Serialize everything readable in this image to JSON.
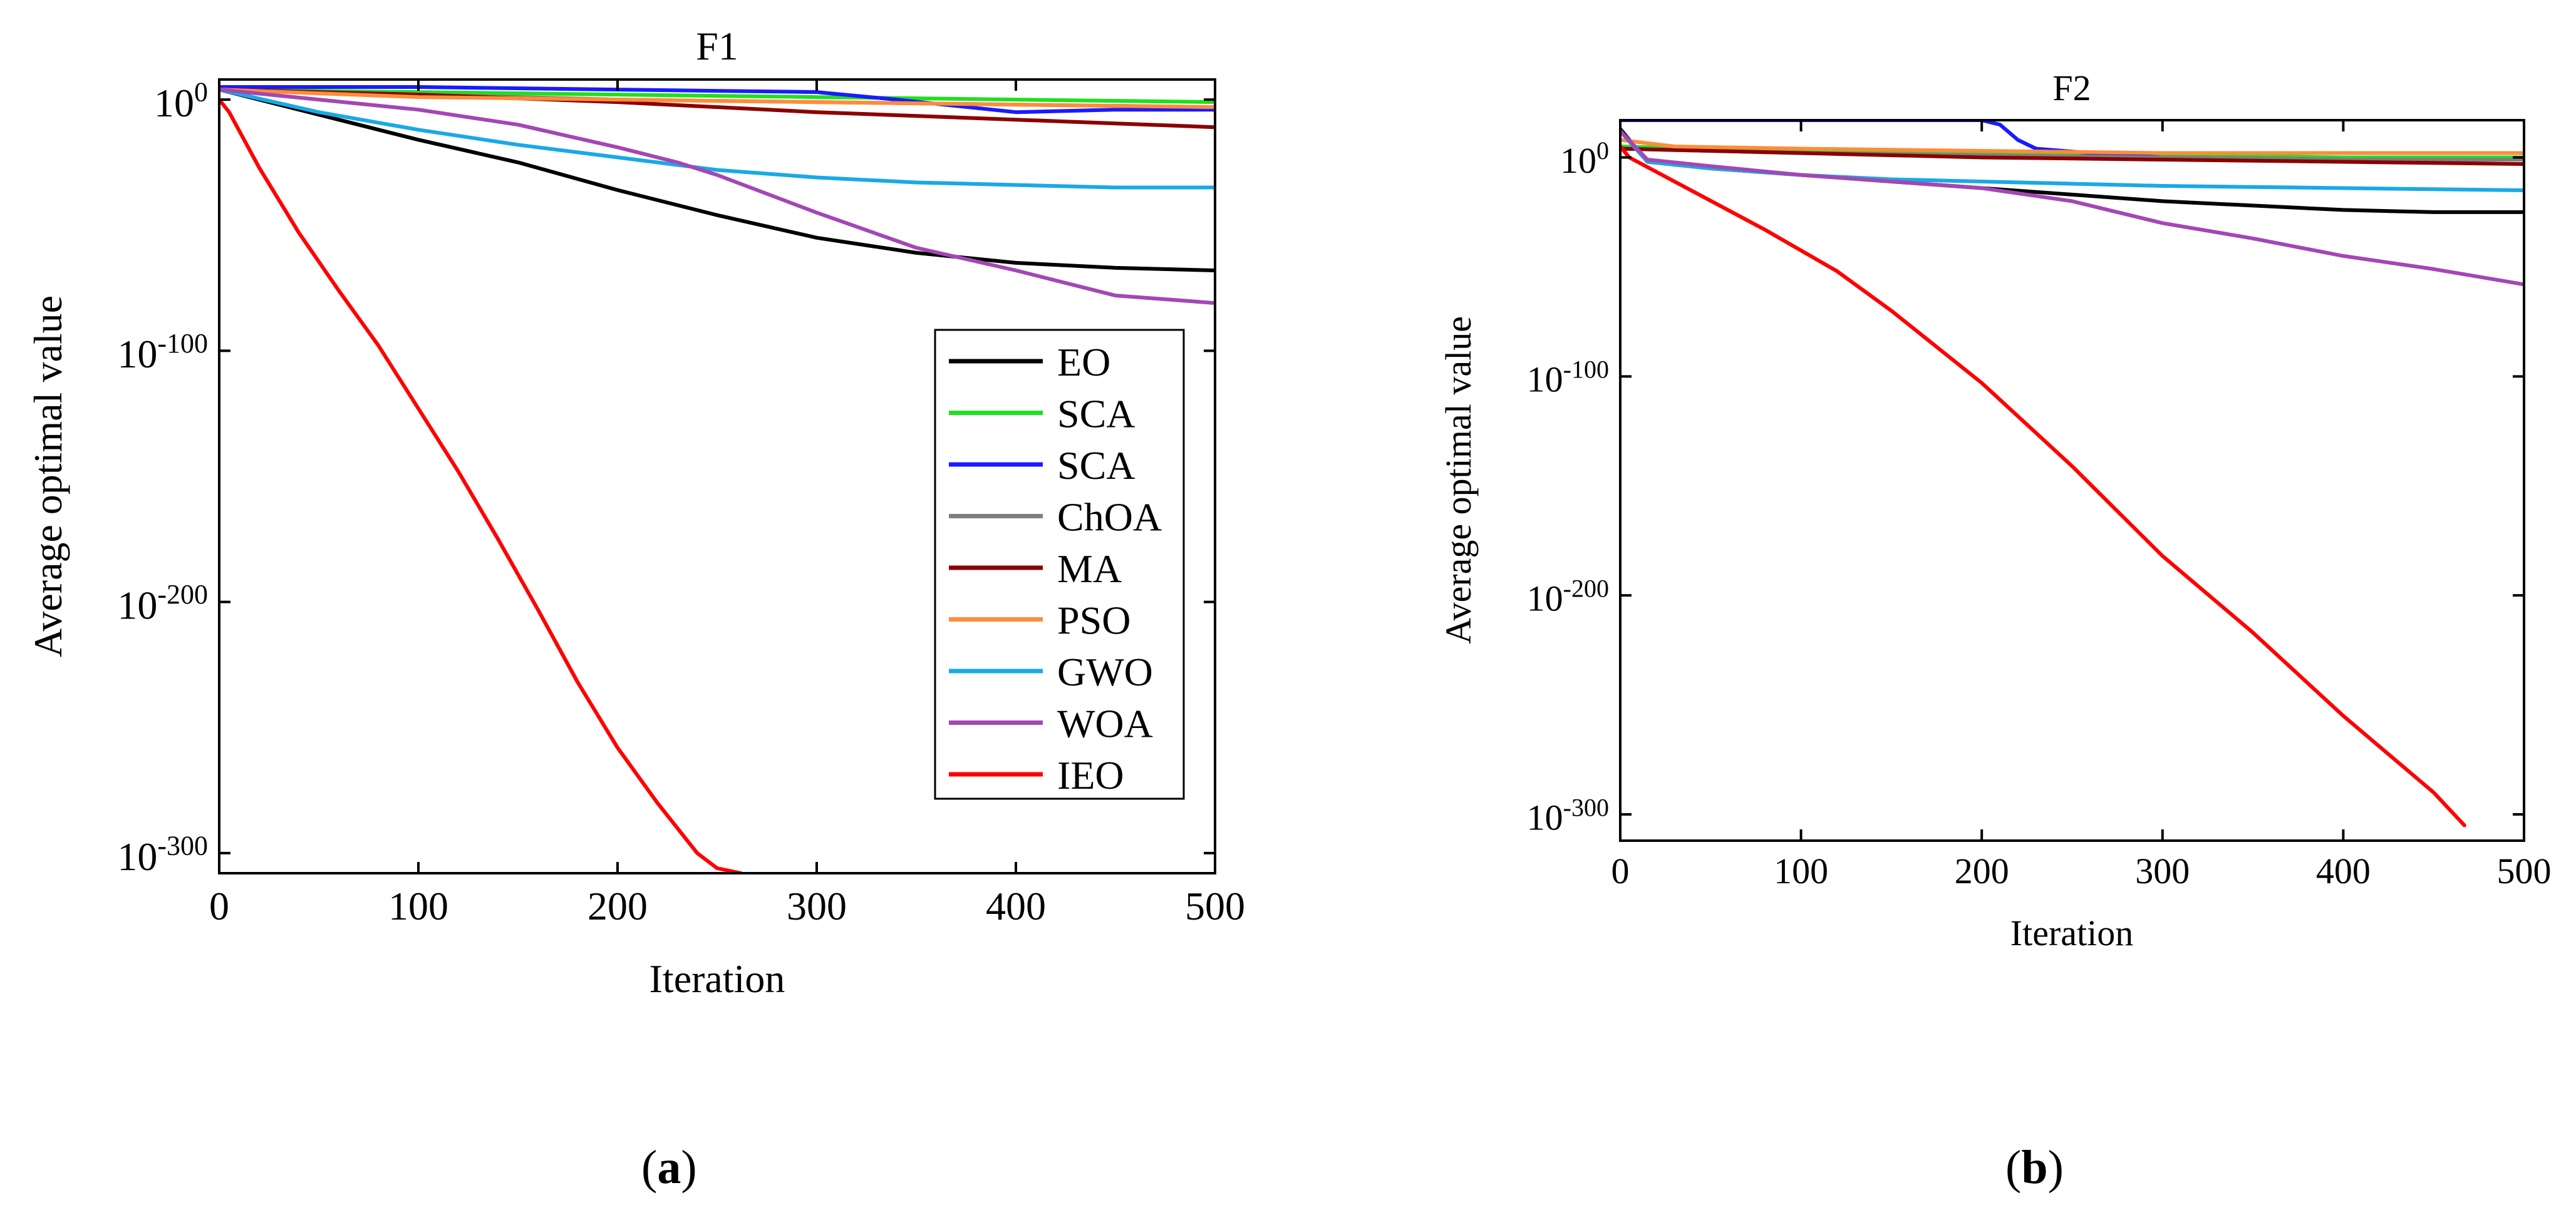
{
  "chart_data": [
    {
      "type": "line",
      "panel": "a",
      "title": "F1",
      "xlabel": "Iteration",
      "ylabel": "Average optimal value",
      "yscale": "log10",
      "xlim": [
        0,
        500
      ],
      "ylim_exp": [
        -308,
        8
      ],
      "xticks": [
        "0",
        "100",
        "200",
        "300",
        "400",
        "500"
      ],
      "yticks": [
        {
          "base": "10",
          "exp": "0"
        },
        {
          "base": "10",
          "exp": "-100"
        },
        {
          "base": "10",
          "exp": "-200"
        },
        {
          "base": "10",
          "exp": "-300"
        }
      ],
      "legend_position": "lower-right",
      "series": [
        {
          "name": "EO",
          "color": "#000000",
          "x": [
            0,
            50,
            100,
            150,
            200,
            250,
            300,
            350,
            400,
            450,
            500
          ],
          "log10_y": [
            4,
            -6,
            -16,
            -25,
            -36,
            -46,
            -55,
            -61,
            -65,
            -67,
            -68
          ]
        },
        {
          "name": "SCA",
          "color": "#1fe01f",
          "x": [
            0,
            100,
            200,
            300,
            400,
            500
          ],
          "log10_y": [
            4,
            3,
            2,
            1,
            0,
            -1
          ]
        },
        {
          "name": "SCA",
          "color": "#1a1aff",
          "x": [
            0,
            100,
            200,
            300,
            340,
            400,
            450,
            500
          ],
          "log10_y": [
            5,
            5,
            4,
            3,
            0,
            -5,
            -4,
            -4
          ]
        },
        {
          "name": "ChOA",
          "color": "#7f7f7f",
          "x": [
            0,
            100,
            200,
            300,
            400,
            500
          ],
          "log10_y": [
            4,
            2,
            0,
            -1,
            -2,
            -3
          ]
        },
        {
          "name": "MA",
          "color": "#8b0000",
          "x": [
            0,
            100,
            200,
            300,
            400,
            500
          ],
          "log10_y": [
            4,
            2,
            -1,
            -5,
            -8,
            -11
          ]
        },
        {
          "name": "PSO",
          "color": "#ff8c3a",
          "x": [
            0,
            100,
            200,
            300,
            400,
            500
          ],
          "log10_y": [
            4,
            1,
            0,
            -1,
            -2,
            -3
          ]
        },
        {
          "name": "GWO",
          "color": "#19a9e6",
          "x": [
            0,
            50,
            100,
            150,
            200,
            250,
            300,
            350,
            400,
            450,
            500
          ],
          "log10_y": [
            4,
            -5,
            -12,
            -18,
            -23,
            -28,
            -31,
            -33,
            -34,
            -35,
            -35
          ]
        },
        {
          "name": "WOA",
          "color": "#a347b5",
          "x": [
            0,
            50,
            100,
            150,
            200,
            230,
            250,
            300,
            350,
            400,
            450,
            500
          ],
          "log10_y": [
            4,
            0,
            -4,
            -10,
            -19,
            -25,
            -30,
            -45,
            -59,
            -68,
            -78,
            -81
          ]
        },
        {
          "name": "IEO",
          "color": "#ff0000",
          "x": [
            0,
            5,
            20,
            40,
            60,
            80,
            100,
            120,
            140,
            160,
            180,
            200,
            220,
            240,
            250,
            262
          ],
          "log10_y": [
            0,
            -5,
            -27,
            -53,
            -76,
            -98,
            -123,
            -148,
            -175,
            -203,
            -232,
            -258,
            -280,
            -300,
            -306,
            -308
          ]
        }
      ]
    },
    {
      "type": "line",
      "panel": "b",
      "title": "F2",
      "xlabel": "Iteration",
      "ylabel": "Average optimal value",
      "yscale": "log10",
      "xlim": [
        0,
        500
      ],
      "ylim_exp": [
        -312,
        17
      ],
      "xticks": [
        "0",
        "100",
        "200",
        "300",
        "400",
        "500"
      ],
      "yticks": [
        {
          "base": "10",
          "exp": "0"
        },
        {
          "base": "10",
          "exp": "-100"
        },
        {
          "base": "10",
          "exp": "-200"
        },
        {
          "base": "10",
          "exp": "-300"
        }
      ],
      "series": [
        {
          "name": "EO",
          "color": "#000000",
          "x": [
            0,
            15,
            50,
            100,
            150,
            200,
            250,
            300,
            350,
            400,
            450,
            500
          ],
          "log10_y": [
            13,
            -2,
            -5,
            -8,
            -11,
            -14,
            -17,
            -20,
            -22,
            -24,
            -25,
            -25
          ]
        },
        {
          "name": "SCA",
          "color": "#1fe01f",
          "x": [
            0,
            100,
            200,
            300,
            400,
            500
          ],
          "log10_y": [
            5,
            3,
            2,
            1,
            0,
            0
          ]
        },
        {
          "name": "SCA",
          "color": "#1a1aff",
          "x": [
            0,
            200,
            210,
            220,
            230,
            260,
            300,
            400,
            500
          ],
          "log10_y": [
            17,
            17,
            15,
            8,
            4,
            2,
            0,
            -1,
            -1
          ]
        },
        {
          "name": "ChOA",
          "color": "#7f7f7f",
          "x": [
            0,
            100,
            200,
            300,
            400,
            500
          ],
          "log10_y": [
            4,
            2,
            1,
            0,
            -1,
            -1
          ]
        },
        {
          "name": "MA",
          "color": "#8b0000",
          "x": [
            0,
            100,
            200,
            300,
            400,
            500
          ],
          "log10_y": [
            4,
            2,
            0,
            -1,
            -2,
            -3
          ]
        },
        {
          "name": "PSO",
          "color": "#ff8c3a",
          "x": [
            0,
            30,
            100,
            200,
            300,
            400,
            500
          ],
          "log10_y": [
            8,
            5,
            4,
            3,
            2,
            2,
            2
          ]
        },
        {
          "name": "GWO",
          "color": "#19a9e6",
          "x": [
            0,
            15,
            50,
            100,
            150,
            200,
            300,
            400,
            500
          ],
          "log10_y": [
            12,
            -2,
            -5,
            -8,
            -10,
            -11,
            -13,
            -14,
            -15
          ]
        },
        {
          "name": "WOA",
          "color": "#a347b5",
          "x": [
            0,
            15,
            50,
            100,
            150,
            200,
            250,
            300,
            350,
            400,
            450,
            500
          ],
          "log10_y": [
            12,
            -1,
            -4,
            -8,
            -11,
            -14,
            -20,
            -30,
            -37,
            -45,
            -51,
            -58
          ]
        },
        {
          "name": "IEO",
          "color": "#ff0000",
          "x": [
            0,
            5,
            30,
            80,
            120,
            150,
            200,
            250,
            300,
            350,
            400,
            450,
            467
          ],
          "log10_y": [
            5,
            0,
            -11,
            -33,
            -52,
            -70,
            -103,
            -141,
            -182,
            -217,
            -255,
            -290,
            -305
          ]
        }
      ]
    }
  ],
  "captions": [
    {
      "label": "a",
      "open": "(",
      "close": ")"
    },
    {
      "label": "b",
      "open": "(",
      "close": ")"
    }
  ]
}
